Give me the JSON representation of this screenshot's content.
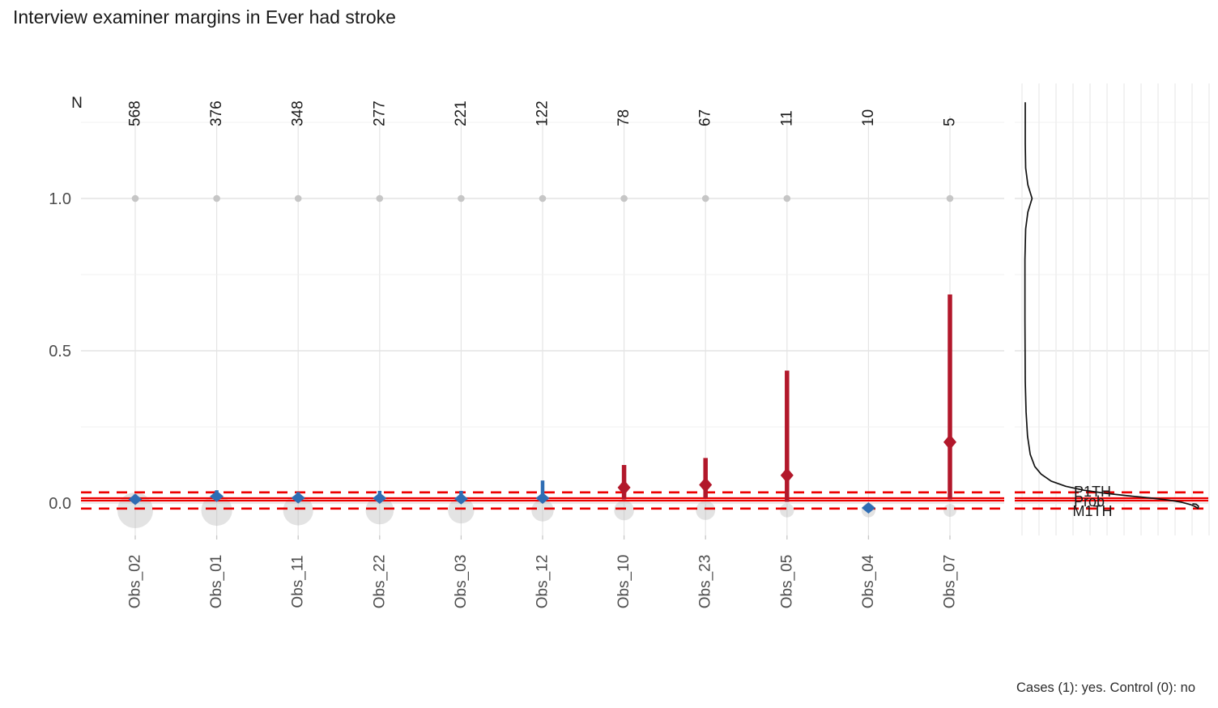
{
  "title": "Interview examiner margins in Ever had stroke",
  "caption": "Cases (1): yes. Control (0): no",
  "chart_data": {
    "type": "scatter",
    "title": "Interview examiner margins in Ever had stroke",
    "subtitle": "",
    "n_header_label": "N",
    "categories": [
      "Obs_02",
      "Obs_01",
      "Obs_11",
      "Obs_22",
      "Obs_03",
      "Obs_12",
      "Obs_10",
      "Obs_23",
      "Obs_05",
      "Obs_04",
      "Obs_07"
    ],
    "n_values": [
      568,
      376,
      348,
      277,
      221,
      122,
      78,
      67,
      11,
      10,
      5
    ],
    "points": [
      {
        "category": "Obs_02",
        "n": 568,
        "value": 0.012,
        "ci_low": 0.004,
        "ci_high": 0.028,
        "group": "within"
      },
      {
        "category": "Obs_01",
        "n": 376,
        "value": 0.022,
        "ci_low": 0.01,
        "ci_high": 0.042,
        "group": "within"
      },
      {
        "category": "Obs_11",
        "n": 348,
        "value": 0.017,
        "ci_low": 0.006,
        "ci_high": 0.036,
        "group": "within"
      },
      {
        "category": "Obs_22",
        "n": 277,
        "value": 0.016,
        "ci_low": 0.005,
        "ci_high": 0.04,
        "group": "within"
      },
      {
        "category": "Obs_03",
        "n": 221,
        "value": 0.014,
        "ci_low": 0.003,
        "ci_high": 0.04,
        "group": "within"
      },
      {
        "category": "Obs_12",
        "n": 122,
        "value": 0.016,
        "ci_low": 0.002,
        "ci_high": 0.074,
        "group": "within"
      },
      {
        "category": "Obs_10",
        "n": 78,
        "value": 0.051,
        "ci_low": 0.012,
        "ci_high": 0.125,
        "group": "beyond"
      },
      {
        "category": "Obs_23",
        "n": 67,
        "value": 0.06,
        "ci_low": 0.016,
        "ci_high": 0.148,
        "group": "beyond"
      },
      {
        "category": "Obs_05",
        "n": 11,
        "value": 0.091,
        "ci_low": 0.004,
        "ci_high": 0.435,
        "group": "beyond"
      },
      {
        "category": "Obs_04",
        "n": 10,
        "value": 0.0,
        "ci_low": 0.0,
        "ci_high": 0.0,
        "group": "within"
      },
      {
        "category": "Obs_07",
        "n": 5,
        "value": 0.2,
        "ci_low": 0.012,
        "ci_high": 0.685,
        "group": "beyond"
      }
    ],
    "case_dot_value": 1.0,
    "case_dot_categories": [
      "Obs_02",
      "Obs_01",
      "Obs_11",
      "Obs_22",
      "Obs_03",
      "Obs_12",
      "Obs_10",
      "Obs_23",
      "Obs_05",
      "Obs_07"
    ],
    "control_bubble_value": 0.0,
    "reference_lines": {
      "solid_values": [
        0.016,
        0.008
      ],
      "dashed_values": [
        0.035,
        -0.018
      ],
      "labels": [
        "P1TH",
        "Prob",
        "M1TH"
      ]
    },
    "y_axis": {
      "tick_labels": [
        "1.0",
        "0.5",
        "0.0"
      ],
      "tick_values": [
        1.0,
        0.5,
        0.0
      ],
      "minor_values": [
        1.25,
        0.75,
        0.25
      ],
      "ylim": [
        -0.105,
        1.27
      ],
      "grid": true
    },
    "density_curve": [
      [
        0.018,
        1.314
      ],
      [
        0.018,
        1.18
      ],
      [
        0.02,
        1.1
      ],
      [
        0.032,
        1.045
      ],
      [
        0.055,
        1.0
      ],
      [
        0.032,
        0.955
      ],
      [
        0.02,
        0.9
      ],
      [
        0.016,
        0.8
      ],
      [
        0.016,
        0.6
      ],
      [
        0.018,
        0.4
      ],
      [
        0.022,
        0.3
      ],
      [
        0.03,
        0.22
      ],
      [
        0.045,
        0.16
      ],
      [
        0.07,
        0.12
      ],
      [
        0.105,
        0.095
      ],
      [
        0.16,
        0.072
      ],
      [
        0.24,
        0.055
      ],
      [
        0.34,
        0.042
      ],
      [
        0.46,
        0.032
      ],
      [
        0.58,
        0.024
      ],
      [
        0.7,
        0.017
      ],
      [
        0.8,
        0.01
      ],
      [
        0.875,
        0.003
      ],
      [
        0.925,
        -0.005
      ],
      [
        0.952,
        -0.012
      ],
      [
        0.966,
        -0.018
      ],
      [
        0.968,
        -0.01
      ],
      [
        0.956,
        -0.004
      ],
      [
        0.938,
        -0.003
      ]
    ],
    "colors": {
      "within": "#2e6db4",
      "beyond": "#b2182b",
      "reference": "#ec0000",
      "bubble": "#bdbdbd",
      "case_dot": "#c6c6c6",
      "density": "#111111",
      "grid_major": "#e4e4e4",
      "grid_minor": "#f1f1f1",
      "axis_text": "#4d4d4d",
      "text": "#1a1a1a",
      "tick_mark": "#c6c6c6"
    },
    "legend_position": "none"
  }
}
